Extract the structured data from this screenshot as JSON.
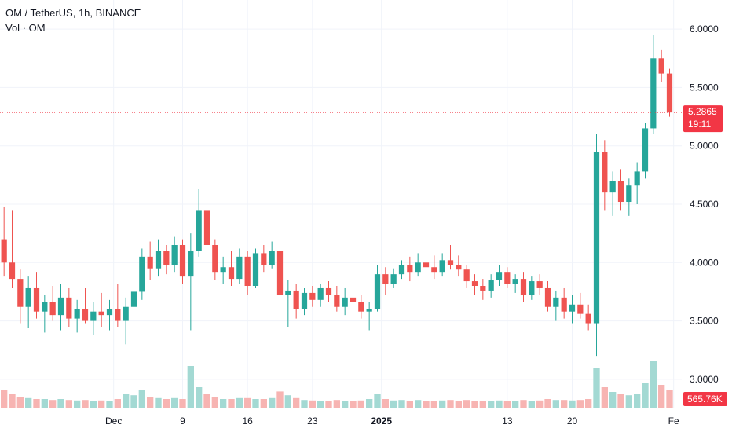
{
  "header": {
    "symbol_line": "OM / TetherUS, 1h, BINANCE",
    "volume_line": "Vol · OM"
  },
  "colors": {
    "up": "#26a69a",
    "down": "#ef5350",
    "price_line": "#f23645",
    "grid": "#f0f3fa",
    "volume_up": "#a3d9d3",
    "volume_down": "#f7b4b2"
  },
  "chart_data": {
    "type": "candlestick",
    "interval": "1h",
    "y_axis": {
      "ticks": [
        "6.0000",
        "5.5000",
        "5.0000",
        "4.5000",
        "4.0000",
        "3.5000",
        "3.0000"
      ],
      "tick_values": [
        6.0,
        5.5,
        5.0,
        4.5,
        4.0,
        3.5,
        3.0
      ],
      "range": [
        2.75,
        6.25
      ]
    },
    "x_axis": {
      "ticks": [
        {
          "label": "Dec",
          "index": 14.0,
          "bold": false
        },
        {
          "label": "9",
          "index": 22.5,
          "bold": false
        },
        {
          "label": "16",
          "index": 30.5,
          "bold": false
        },
        {
          "label": "23",
          "index": 38.5,
          "bold": false
        },
        {
          "label": "2025",
          "index": 47.0,
          "bold": true
        },
        {
          "label": "13",
          "index": 62.5,
          "bold": false
        },
        {
          "label": "20",
          "index": 70.5,
          "bold": false
        },
        {
          "label": "Fe",
          "index": 83.0,
          "bold": false
        }
      ],
      "range": [
        0,
        84
      ]
    },
    "last_price": {
      "value": 5.2865,
      "label": "5.2865",
      "countdown": "19:11"
    },
    "volume_label": "565.76K",
    "grid": true,
    "candles": [
      [
        4.2,
        4.48,
        3.88,
        4.0
      ],
      [
        4.0,
        4.45,
        3.78,
        3.86
      ],
      [
        3.86,
        3.94,
        3.48,
        3.62
      ],
      [
        3.62,
        3.88,
        3.44,
        3.78
      ],
      [
        3.78,
        3.92,
        3.52,
        3.58
      ],
      [
        3.58,
        3.72,
        3.4,
        3.66
      ],
      [
        3.66,
        3.8,
        3.5,
        3.55
      ],
      [
        3.55,
        3.82,
        3.42,
        3.7
      ],
      [
        3.7,
        3.78,
        3.45,
        3.52
      ],
      [
        3.52,
        3.68,
        3.4,
        3.6
      ],
      [
        3.6,
        3.78,
        3.48,
        3.5
      ],
      [
        3.5,
        3.66,
        3.38,
        3.58
      ],
      [
        3.58,
        3.74,
        3.45,
        3.55
      ],
      [
        3.55,
        3.68,
        3.42,
        3.6
      ],
      [
        3.6,
        3.82,
        3.45,
        3.5
      ],
      [
        3.5,
        3.7,
        3.3,
        3.62
      ],
      [
        3.62,
        3.9,
        3.55,
        3.75
      ],
      [
        3.75,
        4.12,
        3.68,
        4.05
      ],
      [
        4.05,
        4.18,
        3.85,
        3.95
      ],
      [
        3.95,
        4.2,
        3.88,
        4.1
      ],
      [
        4.1,
        4.15,
        3.9,
        3.98
      ],
      [
        3.98,
        4.22,
        3.92,
        4.15
      ],
      [
        4.15,
        4.2,
        3.82,
        3.88
      ],
      [
        3.88,
        4.25,
        3.42,
        4.1
      ],
      [
        4.1,
        4.63,
        4.05,
        4.45
      ],
      [
        4.45,
        4.5,
        4.1,
        4.15
      ],
      [
        4.15,
        4.2,
        3.85,
        3.92
      ],
      [
        3.92,
        4.05,
        3.82,
        3.96
      ],
      [
        3.96,
        4.1,
        3.8,
        3.86
      ],
      [
        3.86,
        4.12,
        3.82,
        4.05
      ],
      [
        4.05,
        4.1,
        3.72,
        3.8
      ],
      [
        3.8,
        4.12,
        3.78,
        4.08
      ],
      [
        4.08,
        4.15,
        3.92,
        3.98
      ],
      [
        3.98,
        4.18,
        3.95,
        4.1
      ],
      [
        4.1,
        4.16,
        3.62,
        3.72
      ],
      [
        3.72,
        3.85,
        3.45,
        3.76
      ],
      [
        3.76,
        3.82,
        3.52,
        3.6
      ],
      [
        3.6,
        3.78,
        3.55,
        3.74
      ],
      [
        3.74,
        3.8,
        3.62,
        3.68
      ],
      [
        3.68,
        3.82,
        3.62,
        3.78
      ],
      [
        3.78,
        3.84,
        3.66,
        3.72
      ],
      [
        3.72,
        3.8,
        3.58,
        3.62
      ],
      [
        3.62,
        3.78,
        3.55,
        3.7
      ],
      [
        3.7,
        3.76,
        3.6,
        3.66
      ],
      [
        3.66,
        3.72,
        3.52,
        3.58
      ],
      [
        3.58,
        3.66,
        3.42,
        3.6
      ],
      [
        3.6,
        3.98,
        3.58,
        3.9
      ],
      [
        3.9,
        3.96,
        3.72,
        3.82
      ],
      [
        3.82,
        3.95,
        3.78,
        3.9
      ],
      [
        3.9,
        4.02,
        3.86,
        3.98
      ],
      [
        3.98,
        4.05,
        3.84,
        3.92
      ],
      [
        3.92,
        4.08,
        3.88,
        4.0
      ],
      [
        4.0,
        4.1,
        3.9,
        3.96
      ],
      [
        3.96,
        4.06,
        3.86,
        3.92
      ],
      [
        3.92,
        4.08,
        3.88,
        4.02
      ],
      [
        4.02,
        4.15,
        3.94,
        3.98
      ],
      [
        3.98,
        4.06,
        3.88,
        3.94
      ],
      [
        3.94,
        3.98,
        3.78,
        3.84
      ],
      [
        3.84,
        3.9,
        3.72,
        3.8
      ],
      [
        3.8,
        3.86,
        3.68,
        3.76
      ],
      [
        3.76,
        3.9,
        3.7,
        3.85
      ],
      [
        3.85,
        3.98,
        3.8,
        3.92
      ],
      [
        3.92,
        3.96,
        3.78,
        3.82
      ],
      [
        3.82,
        3.9,
        3.74,
        3.86
      ],
      [
        3.86,
        3.92,
        3.66,
        3.72
      ],
      [
        3.72,
        3.88,
        3.68,
        3.84
      ],
      [
        3.84,
        3.9,
        3.72,
        3.78
      ],
      [
        3.78,
        3.84,
        3.58,
        3.62
      ],
      [
        3.62,
        3.76,
        3.5,
        3.7
      ],
      [
        3.7,
        3.78,
        3.52,
        3.58
      ],
      [
        3.58,
        3.72,
        3.48,
        3.64
      ],
      [
        3.64,
        3.74,
        3.52,
        3.56
      ],
      [
        3.56,
        3.64,
        3.42,
        3.48
      ],
      [
        3.48,
        5.1,
        3.2,
        4.95
      ],
      [
        4.95,
        5.05,
        4.45,
        4.6
      ],
      [
        4.6,
        4.78,
        4.4,
        4.7
      ],
      [
        4.7,
        4.8,
        4.45,
        4.52
      ],
      [
        4.52,
        4.72,
        4.4,
        4.66
      ],
      [
        4.66,
        4.86,
        4.5,
        4.78
      ],
      [
        4.78,
        5.2,
        4.72,
        5.15
      ],
      [
        5.15,
        5.95,
        5.1,
        5.75
      ],
      [
        5.75,
        5.82,
        5.55,
        5.62
      ],
      [
        5.62,
        5.66,
        5.25,
        5.2865
      ]
    ],
    "volumes": [
      0.4,
      0.3,
      0.25,
      0.22,
      0.2,
      0.2,
      0.18,
      0.2,
      0.18,
      0.17,
      0.18,
      0.16,
      0.17,
      0.16,
      0.2,
      0.3,
      0.28,
      0.4,
      0.25,
      0.22,
      0.2,
      0.22,
      0.2,
      0.9,
      0.45,
      0.3,
      0.24,
      0.2,
      0.2,
      0.22,
      0.22,
      0.2,
      0.2,
      0.22,
      0.36,
      0.28,
      0.22,
      0.18,
      0.17,
      0.16,
      0.16,
      0.18,
      0.16,
      0.16,
      0.17,
      0.2,
      0.3,
      0.2,
      0.17,
      0.18,
      0.16,
      0.18,
      0.16,
      0.16,
      0.17,
      0.18,
      0.16,
      0.18,
      0.16,
      0.16,
      0.16,
      0.17,
      0.16,
      0.16,
      0.18,
      0.16,
      0.17,
      0.2,
      0.18,
      0.18,
      0.17,
      0.18,
      0.2,
      0.85,
      0.45,
      0.35,
      0.3,
      0.28,
      0.3,
      0.55,
      1.0,
      0.5,
      0.4
    ]
  }
}
